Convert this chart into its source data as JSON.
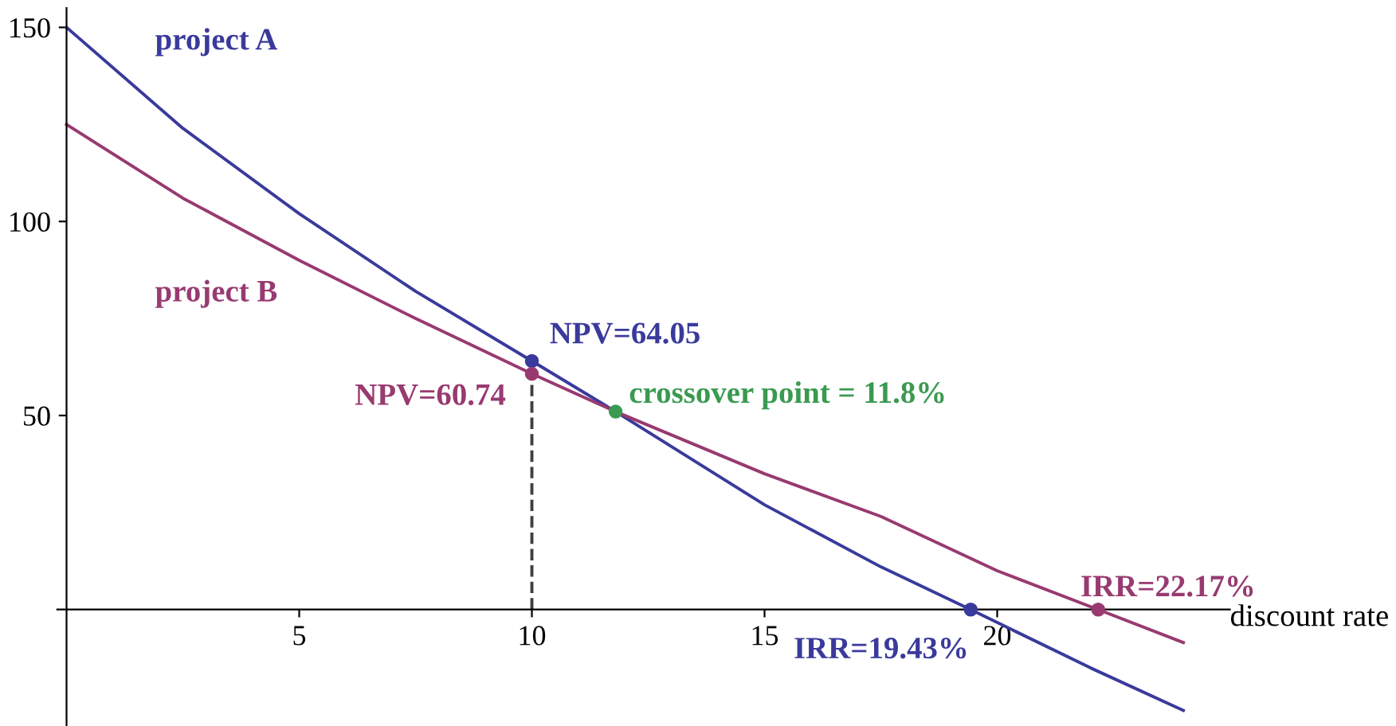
{
  "chart_data": {
    "type": "line",
    "xlabel": "discount rate",
    "xlim": [
      -0.2,
      25
    ],
    "ylim": [
      -30,
      155
    ],
    "xticks": [
      5,
      10,
      15,
      20
    ],
    "yticks": [
      50,
      100,
      150
    ],
    "grid": false,
    "legend": false,
    "marker": "none",
    "line_style": "solid",
    "series": [
      {
        "name": "project A",
        "color": "#3a3a9c",
        "x": [
          0,
          2.5,
          5,
          7.5,
          10,
          11.8,
          15,
          17.5,
          19.43,
          22,
          24
        ],
        "values": [
          150,
          124,
          102,
          82,
          64.05,
          51,
          27,
          11,
          0,
          -15,
          -26
        ]
      },
      {
        "name": "project B",
        "color": "#983a70",
        "x": [
          0,
          2.5,
          5,
          7.5,
          10,
          11.8,
          15,
          17.5,
          20,
          22.17,
          24
        ],
        "values": [
          125,
          106,
          90,
          75,
          60.74,
          51,
          35,
          24,
          10,
          0,
          -8.5
        ]
      },
      {
        "type": "line",
        "color": "#404040",
        "line_style": "dashed",
        "x": [
          10,
          10
        ],
        "values": [
          0,
          60.74
        ]
      },
      {
        "type": "scatter",
        "marker": "circle",
        "x": [
          10,
          10,
          11.8,
          19.43,
          22.17
        ],
        "values": [
          64.05,
          60.74,
          51,
          0,
          0
        ],
        "colors": [
          "#3a3a9c",
          "#983a70",
          "#3a9a50",
          "#3a3a9c",
          "#983a70"
        ]
      }
    ],
    "annotations": [
      {
        "text": "NPV=64.05",
        "x": 10,
        "y": 64.05
      },
      {
        "text": "NPV=60.74",
        "x": 10,
        "y": 60.74
      },
      {
        "text": "crossover point = 11.8%",
        "x": 11.8,
        "y": 51
      },
      {
        "text": "IRR=19.43%",
        "x": 19.43,
        "y": 0
      },
      {
        "text": "IRR=22.17%",
        "x": 22.17,
        "y": 0
      }
    ]
  }
}
